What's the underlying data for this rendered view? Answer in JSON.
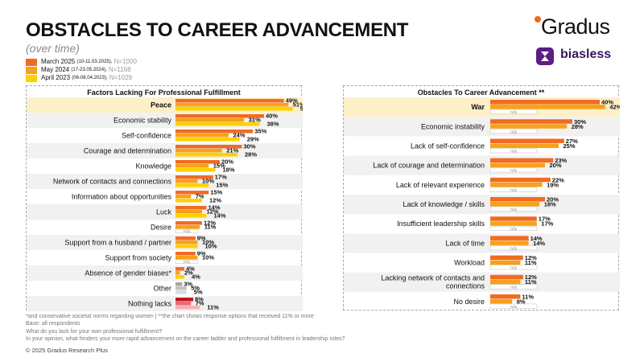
{
  "header": {
    "title": "OBSTACLES TO CAREER ADVANCEMENT",
    "subtitle": "(over time)"
  },
  "legend": [
    {
      "label": "March 2025",
      "dates": "(10-11.03.2025),",
      "n": "N=1000",
      "color": "#f26a21"
    },
    {
      "label": "May 2024",
      "dates": "(17-23.05.2024),",
      "n": "N=1168",
      "color": "#f7a11a"
    },
    {
      "label": "April 2023",
      "dates": "(06-08.04.2023),",
      "n": "N=1029",
      "color": "#ffd000"
    }
  ],
  "logos": {
    "brand": "Gradus",
    "partner": "biasless"
  },
  "chart_data": [
    {
      "type": "bar",
      "title": "Factors Lacking For Professional Fulfillment",
      "value_format": "percent",
      "missing_label": "n/a",
      "categories": [
        "Peace",
        "Economic stability",
        "Self-confidence",
        "Courage and determination",
        "Knowledge",
        "Network of contacts and connections",
        "Information about opportunities",
        "Luck",
        "Desire",
        "Support from a husband / partner",
        "Support from society",
        "Absence of gender biases*",
        "Other",
        "Nothing lacks"
      ],
      "highlight_category": "Peace",
      "series": [
        {
          "name": "March 2025",
          "values": [
            49,
            40,
            35,
            30,
            20,
            17,
            15,
            14,
            12,
            9,
            9,
            4,
            3,
            8
          ]
        },
        {
          "name": "May 2024",
          "values": [
            51,
            31,
            24,
            21,
            15,
            10,
            7,
            12,
            11,
            10,
            10,
            2,
            5,
            7
          ]
        },
        {
          "name": "April 2023",
          "values": [
            53,
            38,
            29,
            28,
            18,
            15,
            12,
            14,
            null,
            10,
            null,
            4,
            5,
            11
          ]
        }
      ],
      "series_colors_override": {
        "Other": [
          "#a6a6a6",
          "#c4c4c4",
          "#dcdcdc"
        ],
        "Nothing lacks": [
          "#c0141b",
          "#e56c74",
          "#f4b2b6"
        ]
      }
    },
    {
      "type": "bar",
      "title": "Obstacles To Career Advancement **",
      "value_format": "percent",
      "missing_label": "n/a",
      "categories": [
        "War",
        "Economic instability",
        "Lack of self-confidence",
        "Lack of courage and determination",
        "Lack of relevant experience",
        "Lack of knowledge / skills",
        "Insufficient leadership skills",
        "Lack of time",
        "Workload",
        "Lacking network of contacts and connections",
        "No desire"
      ],
      "highlight_category": "War",
      "series": [
        {
          "name": "March 2025",
          "values": [
            40,
            30,
            27,
            23,
            22,
            20,
            17,
            14,
            12,
            12,
            11
          ]
        },
        {
          "name": "May 2024",
          "values": [
            42,
            28,
            25,
            20,
            19,
            18,
            17,
            14,
            11,
            11,
            8
          ]
        },
        {
          "name": "April 2023",
          "values": [
            null,
            null,
            null,
            null,
            null,
            null,
            null,
            null,
            null,
            null,
            null
          ]
        }
      ]
    }
  ],
  "footnotes": [
    "*and conservative societal norms regarding women | **the chart shows response options that received 11% or more",
    "Base: all respondents",
    "What do you lack for your own professional fulfillment?",
    "In your opinion, what hinders your more rapid advancement on the career ladder and professional fulfillment in leadership roles?"
  ],
  "copyright": "© 2025 Gradus Research Plus"
}
